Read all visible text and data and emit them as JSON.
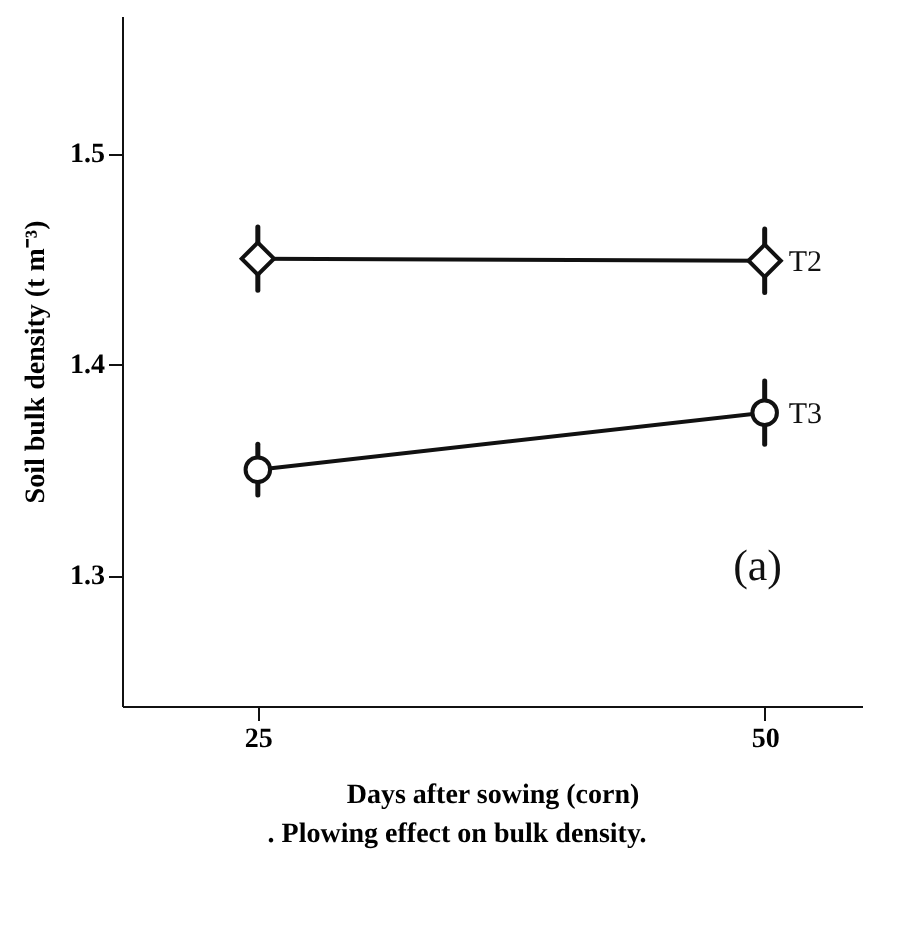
{
  "chart_data": {
    "type": "line",
    "xlabel": "Days after sowing (corn)",
    "ylabel": "Soil bulk density (t m⁻³)",
    "x": [
      25,
      50
    ],
    "series": [
      {
        "name": "T2",
        "color": "#111111",
        "marker": "diamond",
        "values": [
          1.45,
          1.449
        ],
        "errors": [
          0.015,
          0.015
        ]
      },
      {
        "name": "T3",
        "color": "#111111",
        "marker": "circle",
        "values": [
          1.35,
          1.377
        ],
        "errors": [
          0.012,
          0.015
        ]
      }
    ],
    "xlim": [
      18.3,
      54.8
    ],
    "xticks": [
      25,
      50
    ],
    "ylim": [
      1.238,
      1.565
    ],
    "yticks": [
      1.3,
      1.4,
      1.5
    ],
    "grid": false,
    "annotations": [
      "(a)",
      ". Plowing effect on bulk density."
    ]
  }
}
